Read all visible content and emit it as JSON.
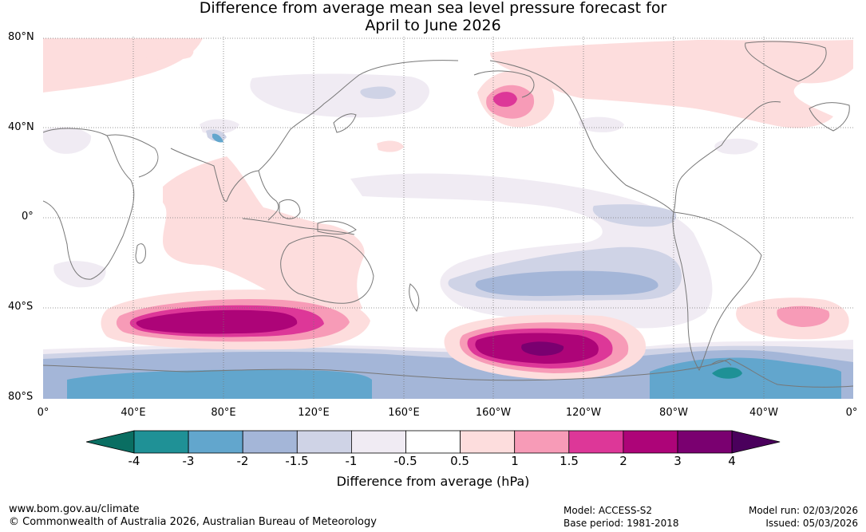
{
  "title": {
    "line1": "Difference from average mean sea level pressure forecast for",
    "line2": "April to June 2026"
  },
  "lat_labels": [
    "80°N",
    "40°N",
    "0°",
    "40°S",
    "80°S"
  ],
  "lon_labels": [
    "0°",
    "40°E",
    "80°E",
    "120°E",
    "160°E",
    "160°W",
    "120°W",
    "80°W",
    "40°W",
    "0°"
  ],
  "colorbar": {
    "tick_labels": [
      "-4",
      "-3",
      "-2",
      "-1.5",
      "-1",
      "-0.5",
      "0.5",
      "1",
      "1.5",
      "2",
      "3",
      "4"
    ],
    "colors": [
      "#0a6e62",
      "#1f9196",
      "#62a6cd",
      "#a4b6d8",
      "#cfd3e6",
      "#f0ebf3",
      "#ffffff",
      "#fddddd",
      "#f79bb7",
      "#dd3798",
      "#ad0478",
      "#7a0070",
      "#4a005c"
    ],
    "title": "Difference from average (hPa)"
  },
  "footer": {
    "website": "www.bom.gov.au/climate",
    "copyright": "© Commonwealth of Australia 2026, Australian Bureau of Meteorology",
    "model": "Model: ACCESS-S2",
    "base_period": "Base period: 1981-2018",
    "model_run": "Model run: 02/03/2026",
    "issued": "Issued: 05/03/2026"
  }
}
